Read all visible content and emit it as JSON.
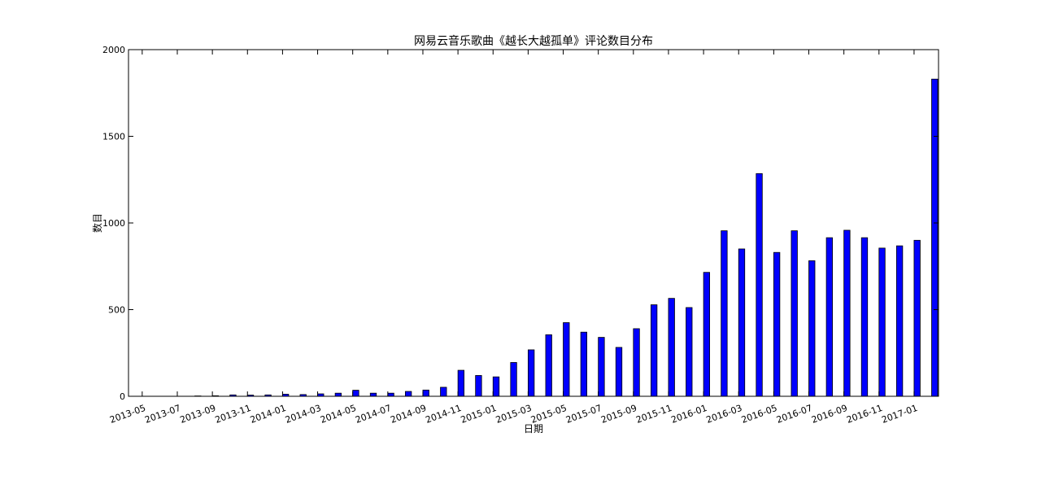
{
  "chart_data": {
    "type": "bar",
    "title": "网易云音乐歌曲《越长大越孤单》评论数目分布",
    "xlabel": "日期",
    "ylabel": "数目",
    "ylim": [
      0,
      2000
    ],
    "yticks": [
      0,
      500,
      1000,
      1500,
      2000
    ],
    "xtick_labels": [
      "2013-05",
      "2013-07",
      "2013-09",
      "2013-11",
      "2014-01",
      "2014-03",
      "2014-05",
      "2014-07",
      "2014-09",
      "2014-11",
      "2015-01",
      "2015-03",
      "2015-05",
      "2015-07",
      "2015-09",
      "2015-11",
      "2016-01",
      "2016-03",
      "2016-05",
      "2016-07",
      "2016-09",
      "2016-11",
      "2017-01"
    ],
    "categories": [
      "2013-05",
      "2013-06",
      "2013-07",
      "2013-08",
      "2013-09",
      "2013-10",
      "2013-11",
      "2013-12",
      "2014-01",
      "2014-02",
      "2014-03",
      "2014-04",
      "2014-05",
      "2014-06",
      "2014-07",
      "2014-08",
      "2014-09",
      "2014-10",
      "2014-11",
      "2014-12",
      "2015-01",
      "2015-02",
      "2015-03",
      "2015-04",
      "2015-05",
      "2015-06",
      "2015-07",
      "2015-08",
      "2015-09",
      "2015-10",
      "2015-11",
      "2015-12",
      "2016-01",
      "2016-02",
      "2016-03",
      "2016-04",
      "2016-05",
      "2016-06",
      "2016-07",
      "2016-08",
      "2016-09",
      "2016-10",
      "2016-11",
      "2016-12",
      "2017-01",
      "2017-02"
    ],
    "values": [
      0,
      0,
      0,
      2,
      3,
      8,
      7,
      8,
      12,
      10,
      14,
      18,
      35,
      18,
      18,
      28,
      36,
      52,
      150,
      120,
      112,
      195,
      268,
      355,
      425,
      370,
      340,
      282,
      390,
      528,
      565,
      512,
      715,
      955,
      850,
      1285,
      830,
      955,
      782,
      915,
      958,
      915,
      855,
      868,
      900,
      1830
    ],
    "bar_color": "#0000ff",
    "grid": false,
    "legend": "none"
  }
}
